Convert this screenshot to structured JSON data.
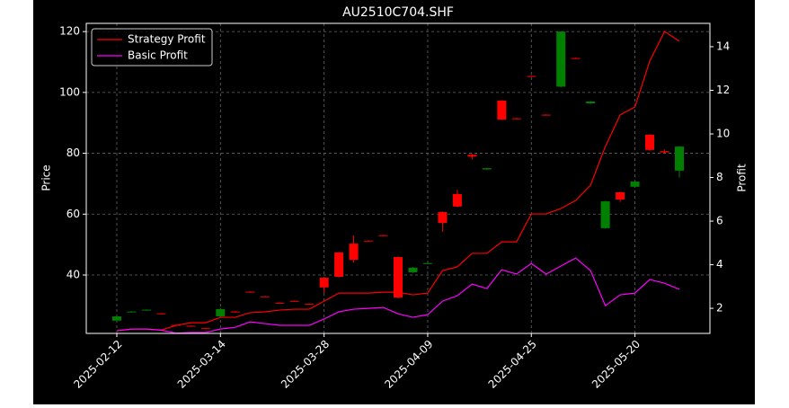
{
  "chart_data": {
    "type": "candlestick",
    "title": "AU2510C704.SHF",
    "y_label": "Price",
    "y2_label": "Profit",
    "categories": [
      "2025-02-12",
      null,
      null,
      null,
      null,
      null,
      null,
      "2025-03-14",
      null,
      null,
      null,
      null,
      null,
      null,
      "2025-03-28",
      null,
      null,
      null,
      null,
      null,
      null,
      "2025-04-09",
      null,
      null,
      null,
      null,
      null,
      null,
      "2025-04-25",
      null,
      null,
      null,
      null,
      null,
      null,
      "2025-05-20",
      null,
      null,
      null
    ],
    "open": [
      26.4,
      28.0,
      28.6,
      27.2,
      23.4,
      23.1,
      22.3,
      28.8,
      27.8,
      34.3,
      32.8,
      30.7,
      31.3,
      30.4,
      35.9,
      39.4,
      45.0,
      51.1,
      52.9,
      32.6,
      42.4,
      43.9,
      57.1,
      62.5,
      78.9,
      75.1,
      91.1,
      91.3,
      105.2,
      92.5,
      120.0,
      111.1,
      97.0,
      64.2,
      64.8,
      70.7,
      81.1,
      80.3,
      82.2
    ],
    "high": [
      26.6,
      28.1,
      28.7,
      27.5,
      23.7,
      23.4,
      22.6,
      29.2,
      28.1,
      34.6,
      33.1,
      31.0,
      31.6,
      30.7,
      39.3,
      47.6,
      53.0,
      51.4,
      53.2,
      46.1,
      42.6,
      44.2,
      60.9,
      68.0,
      79.8,
      75.2,
      97.5,
      91.6,
      105.5,
      92.8,
      120.0,
      111.4,
      97.1,
      64.4,
      67.4,
      70.9,
      86.3,
      81.2,
      82.4
    ],
    "low": [
      24.8,
      27.7,
      28.3,
      27.1,
      23.3,
      23.0,
      22.2,
      26.2,
      27.7,
      34.2,
      32.7,
      30.6,
      31.2,
      30.3,
      34.1,
      39.2,
      44.1,
      51.0,
      52.8,
      32.4,
      40.7,
      43.5,
      54.2,
      62.3,
      78.0,
      74.5,
      90.9,
      91.2,
      105.1,
      92.4,
      101.7,
      111.0,
      96.2,
      55.2,
      64.0,
      68.8,
      80.9,
      80.0,
      72.0
    ],
    "close": [
      25.0,
      27.8,
      28.4,
      27.4,
      23.6,
      23.3,
      22.5,
      26.4,
      28.0,
      34.5,
      33.0,
      30.9,
      31.5,
      30.6,
      39.1,
      47.4,
      50.3,
      51.3,
      53.1,
      45.9,
      40.9,
      43.7,
      60.7,
      66.6,
      79.5,
      74.7,
      97.3,
      91.5,
      105.4,
      92.7,
      101.9,
      111.3,
      96.4,
      55.4,
      67.2,
      69.0,
      86.1,
      80.7,
      74.3
    ],
    "up_color": "#ff0000",
    "down_color": "#008000",
    "series": [
      {
        "name": "Strategy Profit",
        "color": "#ff0000",
        "axis": "y2",
        "values": [
          0.97,
          1.05,
          1.05,
          1.0,
          1.22,
          1.34,
          1.34,
          1.59,
          1.59,
          1.8,
          1.84,
          1.92,
          1.96,
          1.96,
          2.33,
          2.7,
          2.7,
          2.7,
          2.74,
          2.74,
          2.62,
          2.7,
          3.73,
          3.9,
          4.52,
          4.52,
          5.05,
          5.05,
          6.33,
          6.33,
          6.58,
          6.95,
          7.65,
          9.42,
          10.87,
          11.24,
          13.34,
          14.7,
          14.25
        ]
      },
      {
        "name": "Basic Profit",
        "color": "#ff00ff",
        "axis": "y2",
        "values": [
          0.97,
          1.05,
          1.05,
          1.0,
          0.86,
          0.89,
          0.89,
          1.05,
          1.13,
          1.38,
          1.3,
          1.22,
          1.22,
          1.22,
          1.51,
          1.84,
          1.96,
          2.0,
          2.04,
          1.75,
          1.59,
          1.71,
          2.33,
          2.58,
          3.11,
          2.91,
          3.77,
          3.57,
          4.06,
          3.57,
          3.94,
          4.31,
          3.73,
          2.12,
          2.62,
          2.7,
          3.32,
          3.15,
          2.87
        ]
      }
    ],
    "ylim": [
      20.8,
      122.7
    ],
    "yticks": [
      40,
      60,
      80,
      100,
      120
    ],
    "y2lim": [
      0.85,
      15.07
    ],
    "y2ticks": [
      2,
      4,
      6,
      8,
      10,
      12,
      14
    ],
    "grid": true,
    "legend": "upper left"
  }
}
